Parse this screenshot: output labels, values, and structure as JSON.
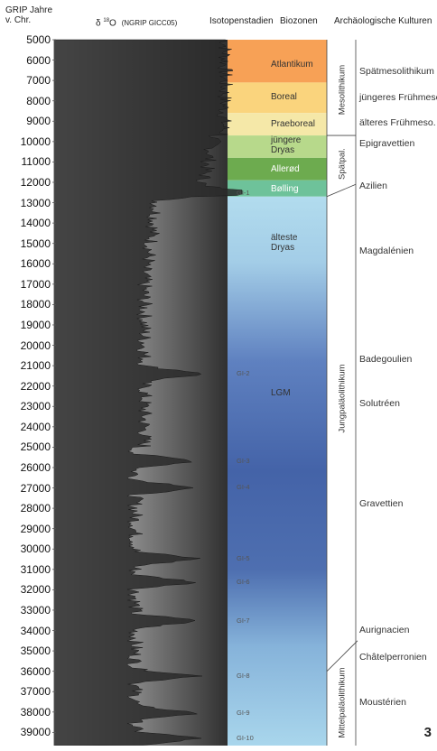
{
  "headers": {
    "time_line1": "GRIP Jahre",
    "time_line2": "v. Chr.",
    "isotope_delta": "δ",
    "isotope_sup": "18",
    "isotope_o": "O",
    "isotope_source": "(NGRIP GICC05)",
    "isotope_stages": "Isotopenstadien",
    "biozones": "Biozonen",
    "cultures": "Archäologische Kulturen"
  },
  "chart_data": {
    "type": "area",
    "y_axis_range": [
      5000,
      39500
    ],
    "y_axis_reversed": true,
    "y_ticks": [
      5000,
      6000,
      7000,
      8000,
      9000,
      10000,
      11000,
      12000,
      13000,
      14000,
      15000,
      16000,
      17000,
      18000,
      19000,
      20000,
      21000,
      22000,
      23000,
      24000,
      25000,
      26000,
      27000,
      28000,
      29000,
      30000,
      31000,
      32000,
      33000,
      34000,
      35000,
      36000,
      37000,
      38000,
      39000
    ],
    "biozones": [
      {
        "label": "Atlantikum",
        "from": 5000,
        "to": 7100,
        "color": "#f7a156"
      },
      {
        "label": "Boreal",
        "from": 7100,
        "to": 8600,
        "color": "#fad47d"
      },
      {
        "label": "Praeboreal",
        "from": 8600,
        "to": 9700,
        "color": "#f5e8a8"
      },
      {
        "label": "jüngere Dryas",
        "from": 9700,
        "to": 10800,
        "color": "#b7d98b"
      },
      {
        "label": "Allerød",
        "from": 10800,
        "to": 11900,
        "color": "#6dab4f"
      },
      {
        "label": "Bølling",
        "from": 11900,
        "to": 12700,
        "color": "#6ec29a"
      },
      {
        "label": "älteste Dryas",
        "from": 12700,
        "to": 17500,
        "color": "#a9d3e8"
      },
      {
        "label": "LGM",
        "from": 17500,
        "to": 35000,
        "color": "#4a6bae"
      }
    ],
    "isotope_stages": [
      "GI-1",
      "GI-2",
      "GI-3",
      "GI-4",
      "GI-5",
      "GI-6",
      "GI-7",
      "GI-8",
      "GI-9",
      "GI-10"
    ],
    "periods": [
      {
        "label": "Mesolithikum",
        "from": 5000,
        "to": 9700
      },
      {
        "label": "Spätpal.",
        "from": 9700,
        "to": 12700
      },
      {
        "label": "Jungpaläolithikum",
        "from": 12700,
        "to": 36000
      },
      {
        "label": "Mittelpaläolithikum",
        "from": 36000,
        "to": 39500
      }
    ],
    "cultures": [
      "Spätmesolithikum",
      "jüngeres Frühmeso.",
      "älteres Frühmeso.",
      "Epigravettien",
      "Azilien",
      "Magdalénien",
      "Badegoulien",
      "Solutréen",
      "Gravettien",
      "Aurignacien",
      "Châtelperronien",
      "Moustérien"
    ]
  },
  "page_number": "3"
}
